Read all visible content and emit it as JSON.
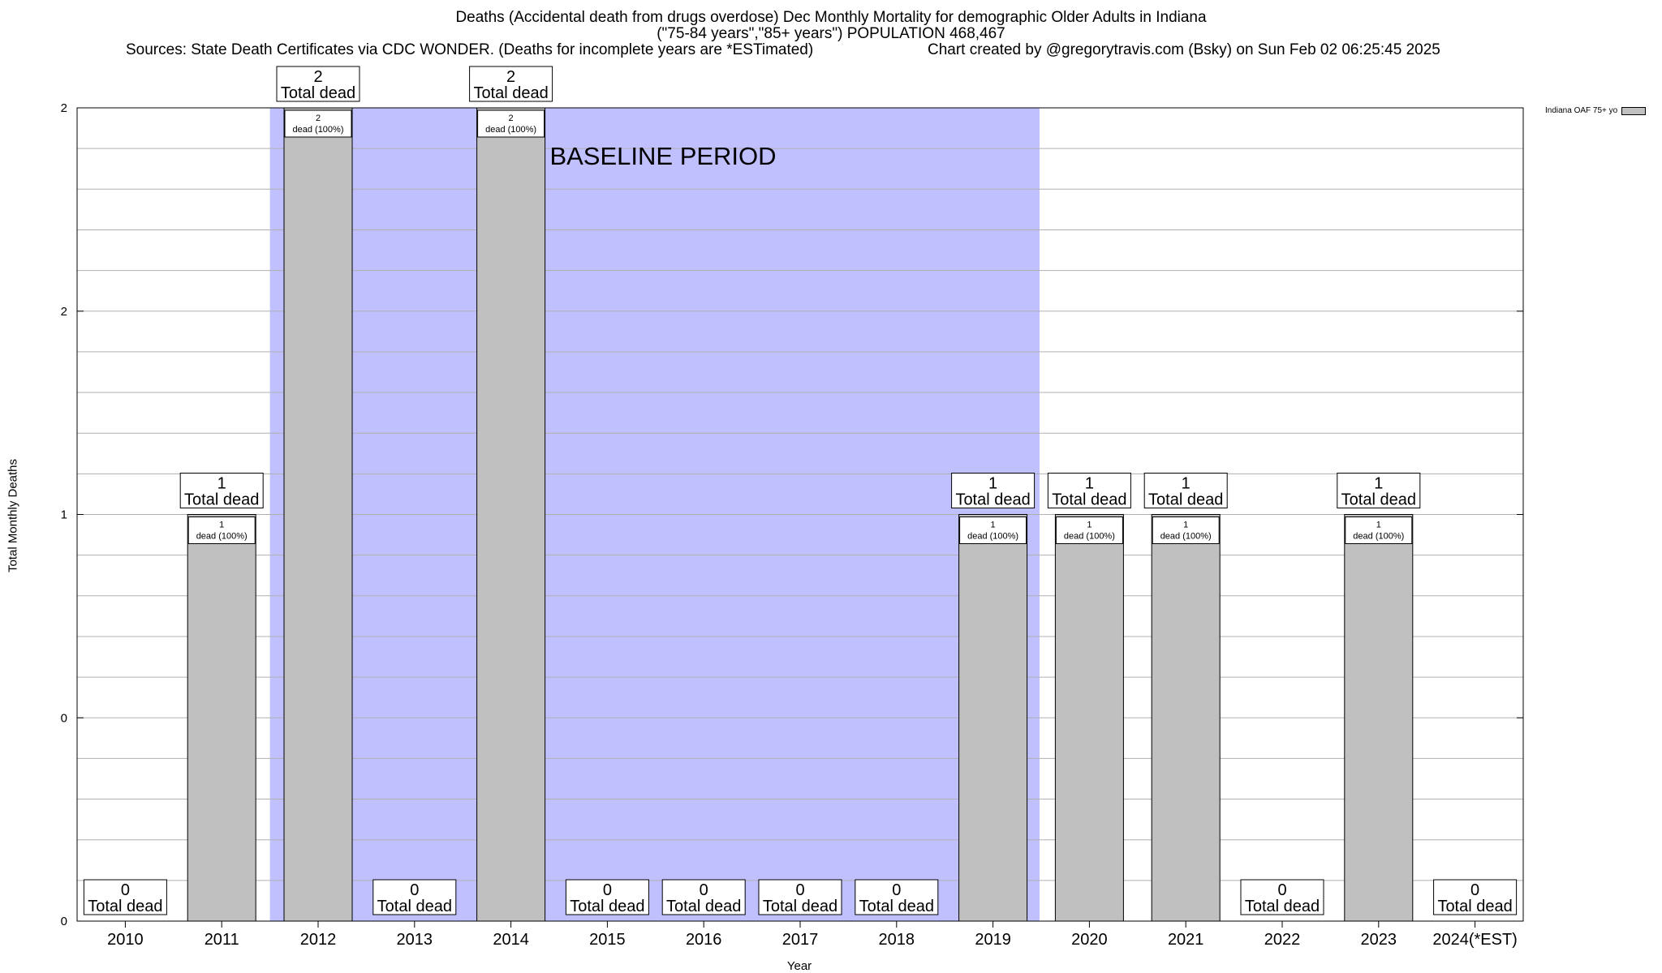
{
  "chart_data": {
    "type": "bar",
    "title_lines": [
      "Deaths (Accidental death from drugs overdose) Dec Monthly Mortality for demographic Older Adults in Indiana",
      "(\"75-84 years\",\"85+ years\") POPULATION 468,467"
    ],
    "sources": "Sources: State Death Certificates via CDC WONDER. (Deaths for incomplete years are *ESTimated)",
    "credit": "Chart created by @gregorytravis.com (Bsky) on Sun Feb 02 06:25:45 2025",
    "xlabel": "Year",
    "ylabel": "Total Monthly Deaths",
    "ylim": [
      0,
      2
    ],
    "y_tick_labels": [
      "0",
      "0",
      "1",
      "2",
      "2"
    ],
    "categories": [
      "2010",
      "2011",
      "2012",
      "2013",
      "2014",
      "2015",
      "2016",
      "2017",
      "2018",
      "2019",
      "2020",
      "2021",
      "2022",
      "2023",
      "2024(*EST)"
    ],
    "series": [
      {
        "name": "Indiana OAF 75+ yo",
        "values": [
          0,
          1,
          2,
          0,
          2,
          0,
          0,
          0,
          0,
          1,
          1,
          1,
          0,
          1,
          0
        ],
        "color": "#c0c0c0"
      }
    ],
    "total_label": "Total dead",
    "inner_label_suffix": "dead (100%)",
    "baseline": {
      "label": "BASELINE PERIOD",
      "start_category": "2012",
      "end_category": "2019",
      "color": "#c0c0ff"
    },
    "grid": true,
    "legend_position": "top-right"
  }
}
